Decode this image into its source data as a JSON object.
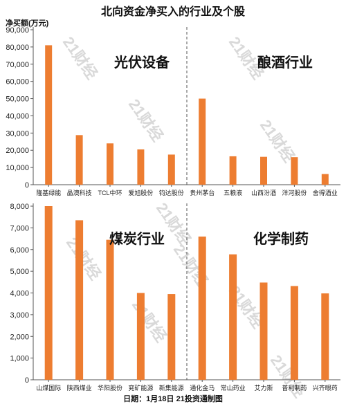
{
  "title": "北向资金净买入的行业及个股",
  "ylabel": "净买额(万元)",
  "footer": "日期：1月18日 21投资通制图",
  "watermark": "21财经",
  "colors": {
    "bar": "#ED7D31",
    "axis": "#555555",
    "divider": "#555555"
  },
  "chart_data": [
    {
      "type": "bar",
      "ylabel": "净买额(万元)",
      "ylim": [
        0,
        90000
      ],
      "yticks": [
        0,
        10000,
        20000,
        30000,
        40000,
        50000,
        60000,
        70000,
        80000,
        90000
      ],
      "ytick_labels": [
        "0",
        "10,000",
        "20,000",
        "30,000",
        "40,000",
        "50,000",
        "60,000",
        "70,000",
        "80,000",
        "90,000"
      ],
      "groups": [
        {
          "name": "光伏设备",
          "categories": [
            "隆基绿能",
            "晶澳科技",
            "TCL中环",
            "爱旭股份",
            "钧达股份"
          ],
          "values": [
            81000,
            28800,
            24000,
            20500,
            17500
          ]
        },
        {
          "name": "酿酒行业",
          "categories": [
            "贵州茅台",
            "五粮液",
            "山西汾酒",
            "洋河股份",
            "舍得酒业"
          ],
          "values": [
            50000,
            16500,
            16200,
            16000,
            6200
          ]
        }
      ]
    },
    {
      "type": "bar",
      "ylim": [
        0,
        8000
      ],
      "yticks": [
        0,
        1000,
        2000,
        3000,
        4000,
        5000,
        6000,
        7000,
        8000
      ],
      "ytick_labels": [
        "0",
        "1,000",
        "2,000",
        "3,000",
        "4,000",
        "5,000",
        "6,000",
        "7,000",
        "8,000"
      ],
      "groups": [
        {
          "name": "煤炭行业",
          "categories": [
            "山煤国际",
            "陕西煤业",
            "华阳股份",
            "兖矿能源",
            "新集能源"
          ],
          "values": [
            8000,
            7350,
            6450,
            4000,
            3950
          ]
        },
        {
          "name": "化学制药",
          "categories": [
            "通化金马",
            "常山药业",
            "艾力斯",
            "普利制药",
            "兴齐眼药"
          ],
          "values": [
            6600,
            5780,
            4480,
            4320,
            3980
          ]
        }
      ]
    }
  ]
}
